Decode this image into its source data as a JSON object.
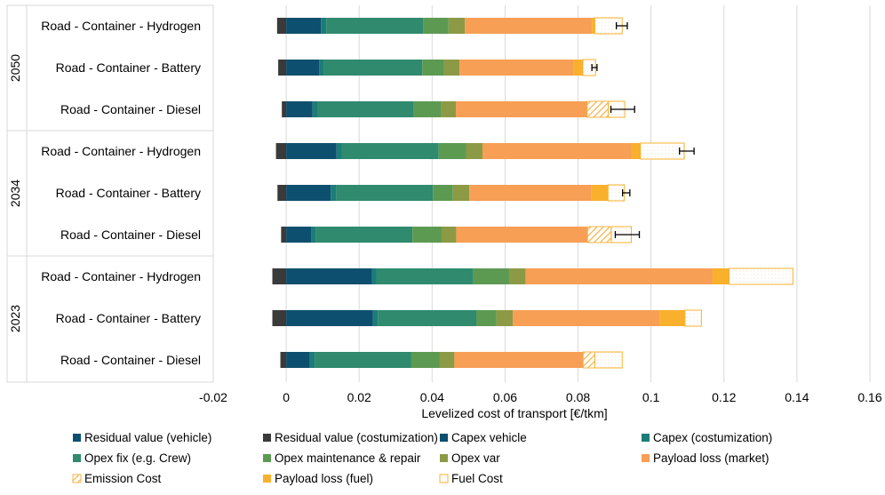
{
  "chart_data": {
    "type": "bar",
    "orientation": "horizontal",
    "stacked": true,
    "xlabel": "Levelized cost of transport [€/tkm]",
    "xlim": [
      -0.02,
      0.16
    ],
    "xticks": [
      "-0.02",
      "0",
      "0.02",
      "0.04",
      "0.06",
      "0.08",
      "0.1",
      "0.12",
      "0.14",
      "0.16"
    ],
    "xtick_values": [
      -0.02,
      0,
      0.02,
      0.04,
      0.06,
      0.08,
      0.1,
      0.12,
      0.14,
      0.16
    ],
    "grid": "vertical",
    "legend_position": "bottom",
    "groups": [
      {
        "label": "2050",
        "categories": [
          "Road - Container - Hydrogen",
          "Road - Container - Battery",
          "Road - Container - Diesel"
        ]
      },
      {
        "label": "2034",
        "categories": [
          "Road - Container - Hydrogen",
          "Road - Container - Battery",
          "Road - Container - Diesel"
        ]
      },
      {
        "label": "2023",
        "categories": [
          "Road - Container - Hydrogen",
          "Road - Container - Battery",
          "Road - Container - Diesel"
        ]
      }
    ],
    "negative_series": [
      {
        "name": "Residual value (costumization)",
        "color": "#3a3a3a",
        "values": [
          -0.0025,
          -0.0022,
          -0.0012,
          -0.0028,
          -0.0024,
          -0.0014,
          -0.0038,
          -0.0038,
          -0.0016
        ]
      },
      {
        "name": "Residual value (vehicle)",
        "color": "#0d4f6e",
        "values": [
          0,
          0,
          0,
          0,
          0,
          0,
          0,
          0,
          0
        ]
      }
    ],
    "series": [
      {
        "name": "Capex vehicle",
        "color": "#0d4f6e",
        "pattern": "solid",
        "values": [
          0.0095,
          0.009,
          0.0072,
          0.0138,
          0.0122,
          0.0068,
          0.0235,
          0.0238,
          0.0065
        ]
      },
      {
        "name": "Capex (costumization)",
        "color": "#1c7c78",
        "pattern": "solid",
        "values": [
          0.0015,
          0.0013,
          0.0013,
          0.0015,
          0.0015,
          0.0013,
          0.0013,
          0.0013,
          0.0013
        ]
      },
      {
        "name": "Opex fix (e.g. Crew)",
        "color": "#2f8a6e",
        "pattern": "solid",
        "values": [
          0.0265,
          0.027,
          0.0265,
          0.0265,
          0.0265,
          0.0265,
          0.0265,
          0.027,
          0.0265
        ]
      },
      {
        "name": "Opex maintenance & repair",
        "color": "#5c9a52",
        "pattern": "solid",
        "values": [
          0.007,
          0.006,
          0.0075,
          0.0075,
          0.0055,
          0.008,
          0.0098,
          0.0055,
          0.0078
        ]
      },
      {
        "name": "Opex var",
        "color": "#8c9a45",
        "pattern": "solid",
        "values": [
          0.0045,
          0.0042,
          0.004,
          0.0045,
          0.0045,
          0.004,
          0.0045,
          0.0045,
          0.004
        ]
      },
      {
        "name": "Payload loss (market)",
        "color": "#f79f55",
        "pattern": "solid",
        "values": [
          0.0348,
          0.0313,
          0.036,
          0.0408,
          0.0335,
          0.036,
          0.0513,
          0.0402,
          0.0353
        ]
      },
      {
        "name": "Emission Cost",
        "color": "#f5b44a",
        "pattern": "hatch",
        "values": [
          0,
          0,
          0.0058,
          0,
          0,
          0.0065,
          0,
          0,
          0.0032
        ]
      },
      {
        "name": "Payload loss (fuel)",
        "color": "#f9b02c",
        "pattern": "solid",
        "values": [
          0.0008,
          0.0025,
          0,
          0.0025,
          0.0045,
          0,
          0.0045,
          0.007,
          0
        ]
      },
      {
        "name": "Fuel Cost",
        "color": "#f9b02c",
        "pattern": "dots",
        "values": [
          0.0075,
          0.0035,
          0.0045,
          0.012,
          0.0045,
          0.0055,
          0.0175,
          0.0045,
          0.0075
        ]
      }
    ],
    "error_bars": [
      {
        "center": 0.092,
        "low": 0.0905,
        "high": 0.0935
      },
      {
        "center": 0.0845,
        "low": 0.0838,
        "high": 0.0852
      },
      {
        "center": 0.0925,
        "low": 0.089,
        "high": 0.0955
      },
      {
        "center": 0.1095,
        "low": 0.1078,
        "high": 0.1118
      },
      {
        "center": 0.093,
        "low": 0.0922,
        "high": 0.0942
      },
      {
        "center": 0.0945,
        "low": 0.0902,
        "high": 0.0968
      },
      null,
      null,
      null
    ],
    "legend": [
      [
        "Residual value (vehicle)",
        "Residual value (costumization)",
        "Capex vehicle",
        "Capex (costumization)"
      ],
      [
        "Opex fix (e.g. Crew)",
        "Opex maintenance & repair",
        "Opex var",
        "Payload loss (market)"
      ],
      [
        "Emission Cost",
        "Payload loss (fuel)",
        "Fuel Cost"
      ]
    ],
    "legend_styles": {
      "Residual value (vehicle)": {
        "color": "#0d4f6e",
        "pattern": "solid"
      },
      "Residual value (costumization)": {
        "color": "#3a3a3a",
        "pattern": "solid"
      },
      "Capex vehicle": {
        "color": "#0d4f6e",
        "pattern": "solid"
      },
      "Capex (costumization)": {
        "color": "#1c7c78",
        "pattern": "solid"
      },
      "Opex fix (e.g. Crew)": {
        "color": "#2f8a6e",
        "pattern": "solid"
      },
      "Opex maintenance & repair": {
        "color": "#5c9a52",
        "pattern": "solid"
      },
      "Opex var": {
        "color": "#8c9a45",
        "pattern": "solid"
      },
      "Payload loss (market)": {
        "color": "#f79f55",
        "pattern": "solid"
      },
      "Emission Cost": {
        "color": "#f5b44a",
        "pattern": "hatch"
      },
      "Payload loss (fuel)": {
        "color": "#f9b02c",
        "pattern": "solid"
      },
      "Fuel Cost": {
        "color": "#f9b02c",
        "pattern": "dots"
      }
    }
  }
}
